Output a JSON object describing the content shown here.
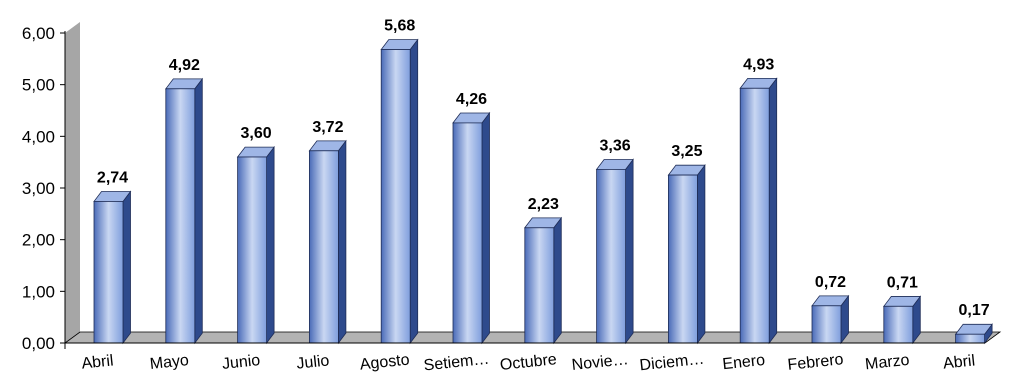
{
  "chart_data": {
    "type": "bar",
    "categories": [
      "Abril",
      "Mayo",
      "Junio",
      "Julio",
      "Agosto",
      "Setiem…",
      "Octubre",
      "Novie…",
      "Diciem…",
      "Enero",
      "Febrero",
      "Marzo",
      "Abril"
    ],
    "values": [
      2.74,
      4.92,
      3.6,
      3.72,
      5.68,
      4.26,
      2.23,
      3.36,
      3.25,
      4.93,
      0.72,
      0.71,
      0.17
    ],
    "data_labels": [
      "2,74",
      "4,92",
      "3,60",
      "3,72",
      "5,68",
      "4,26",
      "2,23",
      "3,36",
      "3,25",
      "4,93",
      "0,72",
      "0,71",
      "0,17"
    ],
    "y_ticks": [
      "0,00",
      "1,00",
      "2,00",
      "3,00",
      "4,00",
      "5,00",
      "6,00"
    ],
    "ylim": [
      0,
      6
    ],
    "title": "",
    "xlabel": "",
    "ylabel": "",
    "grid": false,
    "legend": "none",
    "style": "3d-column"
  },
  "colors": {
    "bar_light": "#c9d7f2",
    "bar_mid": "#7f9edd",
    "bar_dark": "#4a6bb8",
    "bar_side": "#2e4a8c",
    "bar_top": "#9fb6e6",
    "bar_edge": "#1f2d57",
    "wall": "#a6a6a6",
    "floor": "#b3b3b3"
  }
}
